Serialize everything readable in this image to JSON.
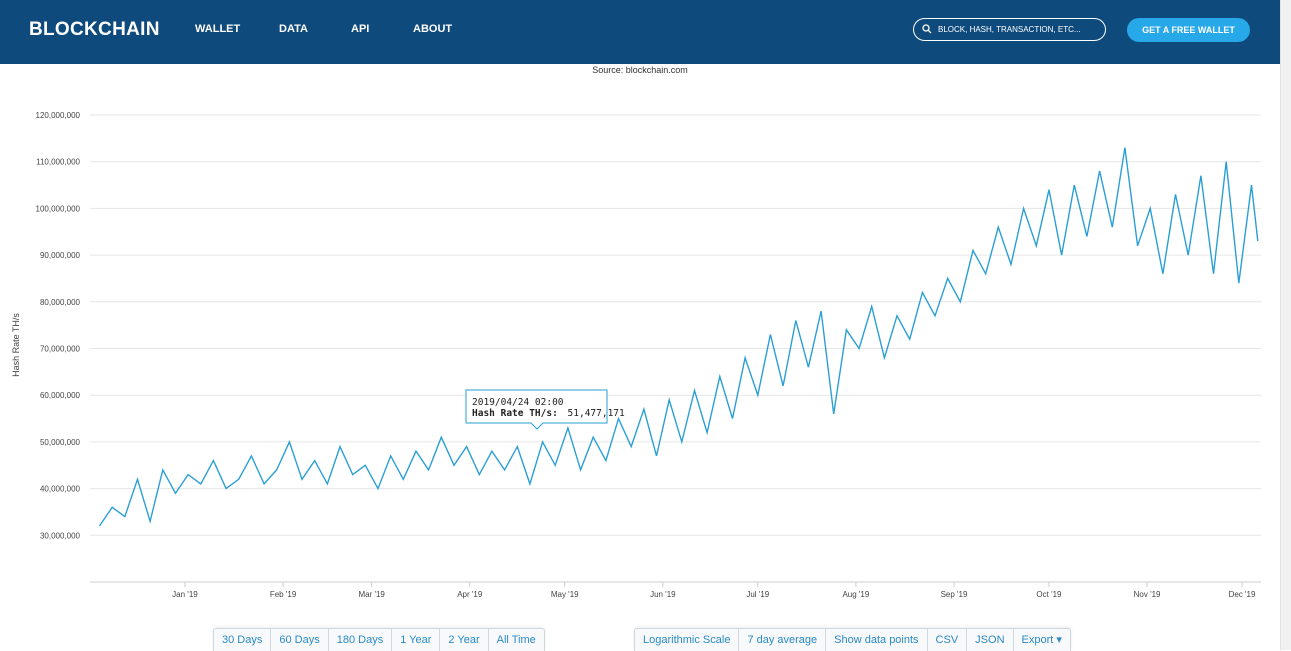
{
  "header": {
    "logo": "BLOCKCHAIN",
    "nav": [
      "WALLET",
      "DATA",
      "API",
      "ABOUT"
    ],
    "search_placeholder": "BLOCK, HASH, TRANSACTION, ETC...",
    "cta": "GET A FREE WALLET",
    "background_color": "#0f4a7d",
    "cta_color": "#27a8e8"
  },
  "source_text": "Source: blockchain.com",
  "tooltip": {
    "date": "2019/04/24 02:00",
    "label": "Hash Rate TH/s:",
    "value": "51,477,171"
  },
  "controls": {
    "ranges": [
      "30 Days",
      "60 Days",
      "180 Days",
      "1 Year",
      "2 Year",
      "All Time"
    ],
    "options": [
      "Logarithmic Scale",
      "7 day average",
      "Show data points",
      "CSV",
      "JSON",
      "Export ▾"
    ]
  },
  "chart_data": {
    "type": "line",
    "ylabel": "Hash Rate TH/s",
    "ylim": [
      20000000,
      120000000
    ],
    "yticks": [
      30000000,
      40000000,
      50000000,
      60000000,
      70000000,
      80000000,
      90000000,
      100000000,
      110000000,
      120000000
    ],
    "ytick_labels": [
      "30,000,000",
      "40,000,000",
      "50,000,000",
      "60,000,000",
      "70,000,000",
      "80,000,000",
      "90,000,000",
      "100,000,000",
      "110,000,000",
      "120,000,000"
    ],
    "xtick_labels": [
      "Jan '19",
      "Feb '19",
      "Mar '19",
      "Apr '19",
      "May '19",
      "Jun '19",
      "Jul '19",
      "Aug '19",
      "Sep '19",
      "Oct '19",
      "Nov '19",
      "Dec '19"
    ],
    "xtick_days": [
      0,
      31,
      59,
      90,
      120,
      151,
      181,
      212,
      243,
      273,
      304,
      334
    ],
    "xlim": [
      -30,
      340
    ],
    "grid": true,
    "line_color": "#2a9fd6",
    "series": [
      {
        "x": [
          -27,
          -23,
          -19,
          -15,
          -11,
          -7,
          -3,
          1,
          5,
          9,
          13,
          17,
          21,
          25,
          29,
          33,
          37,
          41,
          45,
          49,
          53,
          57,
          61,
          65,
          69,
          73,
          77,
          81,
          85,
          89,
          93,
          97,
          101,
          105,
          109,
          113,
          117,
          121,
          125,
          129,
          133,
          137,
          141,
          145,
          149,
          153,
          157,
          161,
          165,
          169,
          173,
          177,
          181,
          185,
          189,
          193,
          197,
          201,
          205,
          209,
          213,
          217,
          221,
          225,
          229,
          233,
          237,
          241,
          245,
          249,
          253,
          257,
          261,
          265,
          269,
          273,
          277,
          281,
          285,
          289,
          293,
          297,
          301,
          305,
          309,
          313,
          317,
          321,
          325,
          329,
          333,
          337,
          339
        ],
        "y": [
          32000000,
          36000000,
          34000000,
          42000000,
          33000000,
          44000000,
          39000000,
          43000000,
          41000000,
          46000000,
          40000000,
          42000000,
          47000000,
          41000000,
          44000000,
          50000000,
          42000000,
          46000000,
          41000000,
          49000000,
          43000000,
          45000000,
          40000000,
          47000000,
          42000000,
          48000000,
          44000000,
          51000000,
          45000000,
          49000000,
          43000000,
          48000000,
          44000000,
          49000000,
          41000000,
          50000000,
          45000000,
          53000000,
          44000000,
          51000000,
          46000000,
          55000000,
          49000000,
          57000000,
          47000000,
          59000000,
          50000000,
          61000000,
          52000000,
          64000000,
          55000000,
          68000000,
          60000000,
          73000000,
          62000000,
          76000000,
          66000000,
          78000000,
          56000000,
          74000000,
          70000000,
          79000000,
          68000000,
          77000000,
          72000000,
          82000000,
          77000000,
          85000000,
          80000000,
          91000000,
          86000000,
          96000000,
          88000000,
          100000000,
          92000000,
          104000000,
          90000000,
          105000000,
          94000000,
          108000000,
          96000000,
          113000000,
          92000000,
          100000000,
          86000000,
          103000000,
          90000000,
          107000000,
          86000000,
          110000000,
          84000000,
          105000000,
          93000000
        ]
      }
    ]
  }
}
